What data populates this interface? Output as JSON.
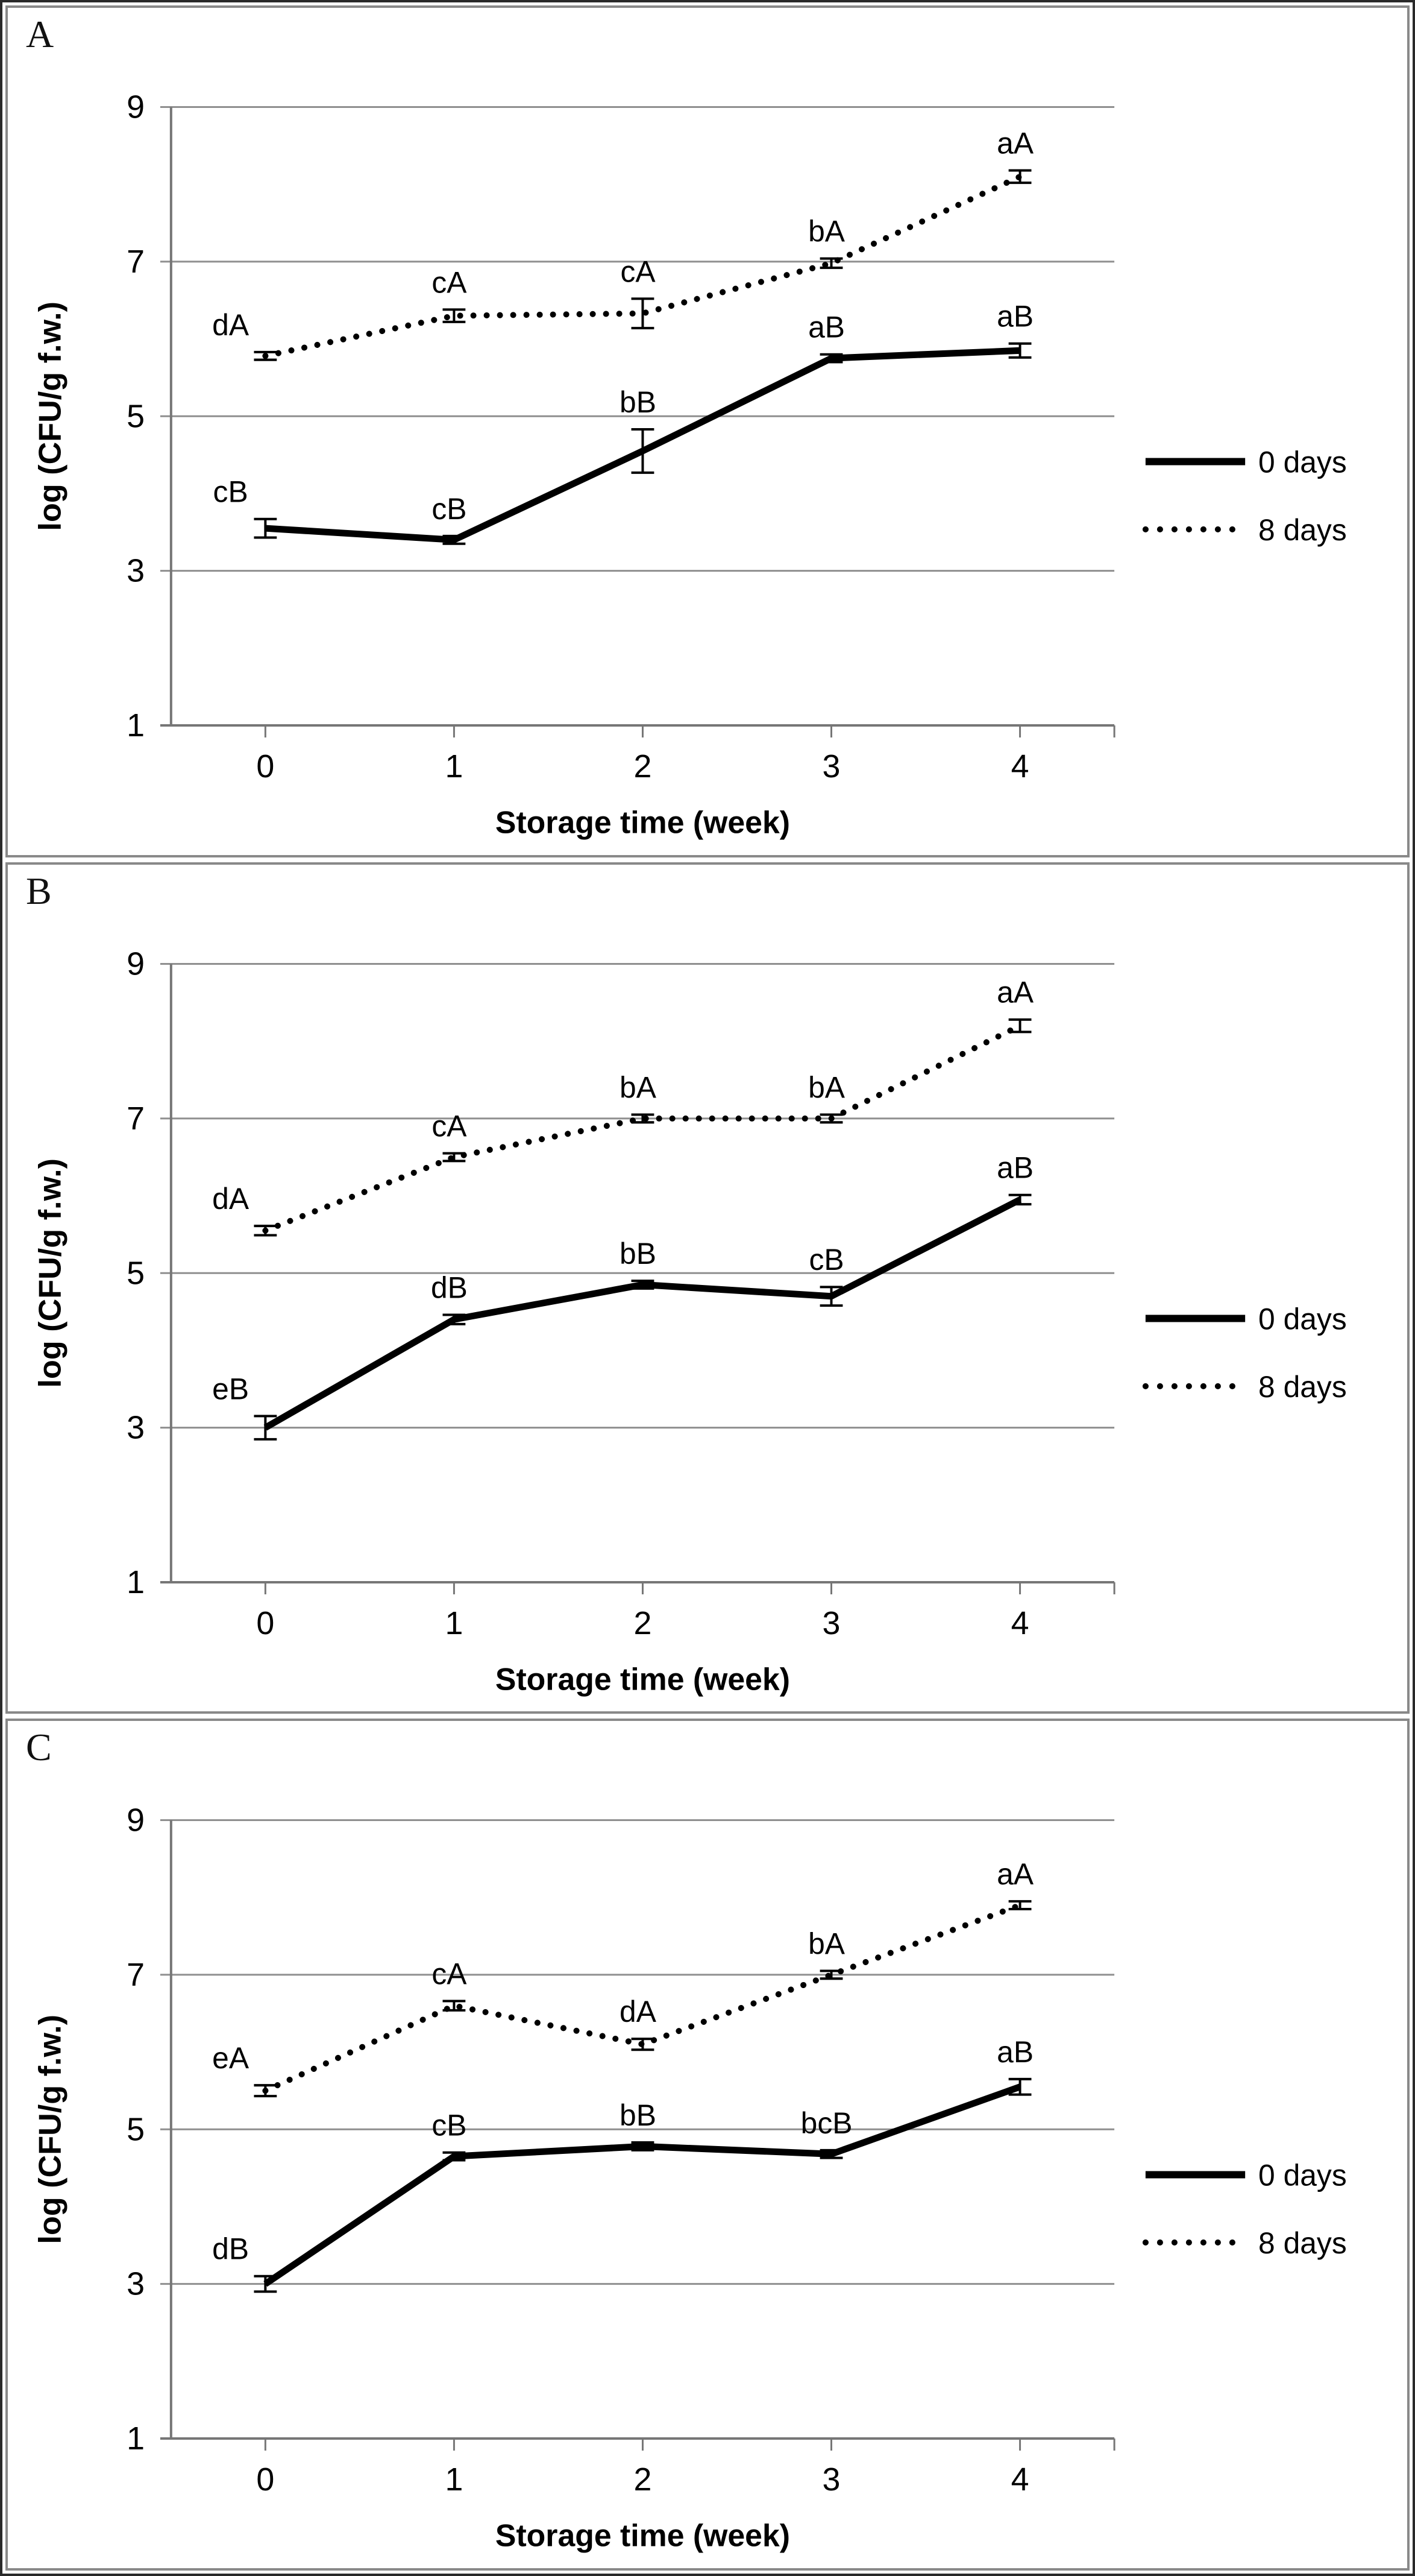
{
  "figure": {
    "description": "Three-panel line chart figure of microbial counts over storage time",
    "outer_border_color": "#2a2a2a",
    "panel_border_color": "#898989",
    "gridline_color": "#8f8f8f",
    "axis_color": "#767676",
    "series_color": "#000000",
    "background_color": "#ffffff"
  },
  "chart_data": [
    {
      "panel_label": "A",
      "type": "line",
      "xlabel": "Storage time (week)",
      "ylabel": "log (CFU/g f.w.)",
      "x_categories": [
        "0",
        "1",
        "2",
        "3",
        "4"
      ],
      "ylim": [
        1,
        9
      ],
      "yticks": [
        1,
        3,
        5,
        7,
        9
      ],
      "grid": true,
      "legend_position": "right",
      "legend_items": [
        {
          "label": "0 days",
          "style": "solid"
        },
        {
          "label": "8 days",
          "style": "dotted"
        }
      ],
      "series": [
        {
          "name": "0 days",
          "style": "solid",
          "values": [
            3.55,
            3.4,
            4.55,
            5.75,
            5.85
          ],
          "error_bars": [
            0.12,
            0.05,
            0.28,
            0.05,
            0.09
          ],
          "point_labels": [
            "cB",
            "cB",
            "bB",
            "aB",
            "aB"
          ]
        },
        {
          "name": "8 days",
          "style": "dotted",
          "values": [
            5.78,
            6.3,
            6.33,
            6.98,
            8.1
          ],
          "error_bars": [
            0.05,
            0.08,
            0.19,
            0.06,
            0.08
          ],
          "point_labels": [
            "dA",
            "cA",
            "cA",
            "bA",
            "aA"
          ]
        }
      ]
    },
    {
      "panel_label": "B",
      "type": "line",
      "xlabel": "Storage time (week)",
      "ylabel": "log (CFU/g f.w.)",
      "x_categories": [
        "0",
        "1",
        "2",
        "3",
        "4"
      ],
      "ylim": [
        1,
        9
      ],
      "yticks": [
        1,
        3,
        5,
        7,
        9
      ],
      "grid": true,
      "legend_position": "right",
      "legend_items": [
        {
          "label": "0 days",
          "style": "solid"
        },
        {
          "label": "8 days",
          "style": "dotted"
        }
      ],
      "series": [
        {
          "name": "0 days",
          "style": "solid",
          "values": [
            3.0,
            4.4,
            4.85,
            4.7,
            5.95
          ],
          "error_bars": [
            0.15,
            0.06,
            0.05,
            0.12,
            0.06
          ],
          "point_labels": [
            "eB",
            "dB",
            "bB",
            "cB",
            "aB"
          ]
        },
        {
          "name": "8 days",
          "style": "dotted",
          "values": [
            5.55,
            6.5,
            7.0,
            7.0,
            8.2
          ],
          "error_bars": [
            0.06,
            0.05,
            0.05,
            0.05,
            0.08
          ],
          "point_labels": [
            "dA",
            "cA",
            "bA",
            "bA",
            "aA"
          ]
        }
      ]
    },
    {
      "panel_label": "C",
      "type": "line",
      "xlabel": "Storage time (week)",
      "ylabel": "log (CFU/g f.w.)",
      "x_categories": [
        "0",
        "1",
        "2",
        "3",
        "4"
      ],
      "ylim": [
        1,
        9
      ],
      "yticks": [
        1,
        3,
        5,
        7,
        9
      ],
      "grid": true,
      "legend_position": "right",
      "legend_items": [
        {
          "label": "0 days",
          "style": "solid"
        },
        {
          "label": "8 days",
          "style": "dotted"
        }
      ],
      "series": [
        {
          "name": "0 days",
          "style": "solid",
          "values": [
            3.0,
            4.65,
            4.78,
            4.68,
            5.55
          ],
          "error_bars": [
            0.1,
            0.05,
            0.05,
            0.05,
            0.1
          ],
          "point_labels": [
            "dB",
            "cB",
            "bB",
            "bcB",
            "aB"
          ]
        },
        {
          "name": "8 days",
          "style": "dotted",
          "values": [
            5.5,
            6.6,
            6.1,
            7.0,
            7.9
          ],
          "error_bars": [
            0.07,
            0.06,
            0.07,
            0.05,
            0.05
          ],
          "point_labels": [
            "eA",
            "cA",
            "dA",
            "bA",
            "aA"
          ]
        }
      ]
    }
  ]
}
